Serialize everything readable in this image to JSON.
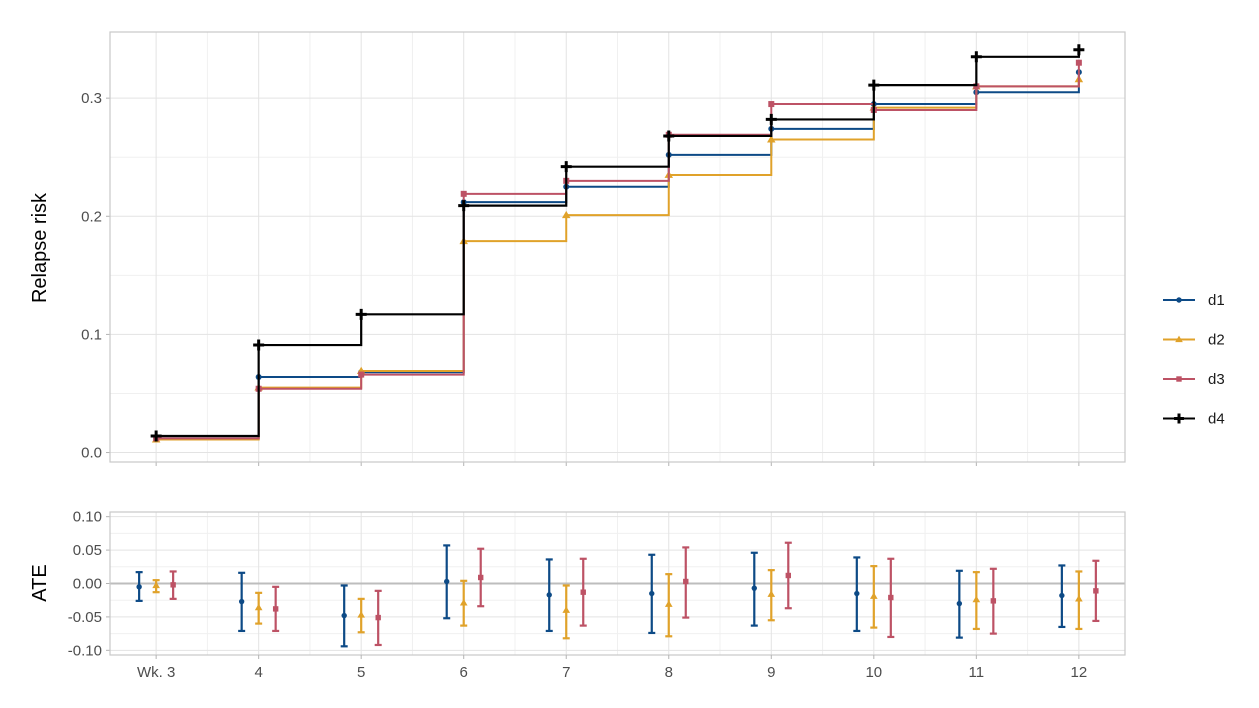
{
  "chart_data": [
    {
      "type": "line",
      "step": true,
      "ylabel": "Relapse risk",
      "xlabel": "",
      "ylim": [
        -0.008,
        0.356
      ],
      "yticks": [
        0.0,
        0.1,
        0.2,
        0.3
      ],
      "ytick_labels": [
        "0.0",
        "0.1",
        "0.2",
        "0.3"
      ],
      "grid": true,
      "x": [
        3,
        4,
        5,
        6,
        7,
        8,
        9,
        10,
        11,
        12
      ],
      "series": [
        {
          "name": "d1",
          "color": "#0d4a86",
          "marker": "circle",
          "values": [
            0.012,
            0.064,
            0.068,
            0.212,
            0.225,
            0.252,
            0.274,
            0.295,
            0.305,
            0.322
          ]
        },
        {
          "name": "d2",
          "color": "#e0a22a",
          "marker": "triangle",
          "values": [
            0.011,
            0.055,
            0.069,
            0.179,
            0.201,
            0.235,
            0.265,
            0.292,
            0.31,
            0.316
          ]
        },
        {
          "name": "d3",
          "color": "#bd5265",
          "marker": "square",
          "values": [
            0.012,
            0.054,
            0.066,
            0.219,
            0.23,
            0.269,
            0.295,
            0.29,
            0.31,
            0.33
          ]
        },
        {
          "name": "d4",
          "color": "#000000",
          "marker": "cross",
          "values": [
            0.014,
            0.091,
            0.117,
            0.209,
            0.242,
            0.268,
            0.282,
            0.311,
            0.335,
            0.341
          ]
        }
      ]
    },
    {
      "type": "errorbar",
      "ylabel": "ATE",
      "xlabel": "",
      "ylim": [
        -0.107,
        0.107
      ],
      "yticks": [
        -0.1,
        -0.05,
        0.0,
        0.05,
        0.1
      ],
      "ytick_labels": [
        "-0.10",
        "-0.05",
        "0.00",
        "0.05",
        "0.10"
      ],
      "grid": true,
      "reference_line": 0,
      "x": [
        3,
        4,
        5,
        6,
        7,
        8,
        9,
        10,
        11,
        12
      ],
      "xtick_labels": [
        "Wk. 3",
        "4",
        "5",
        "6",
        "7",
        "8",
        "9",
        "10",
        "11",
        "12"
      ],
      "series": [
        {
          "name": "d1",
          "color": "#0d4a86",
          "marker": "circle",
          "values": [
            -0.005,
            -0.027,
            -0.048,
            0.003,
            -0.017,
            -0.015,
            -0.007,
            -0.015,
            -0.03,
            -0.018
          ],
          "lower": [
            -0.026,
            -0.071,
            -0.094,
            -0.052,
            -0.071,
            -0.074,
            -0.063,
            -0.071,
            -0.081,
            -0.065
          ],
          "upper": [
            0.017,
            0.016,
            -0.003,
            0.057,
            0.036,
            0.043,
            0.046,
            0.039,
            0.019,
            0.027
          ]
        },
        {
          "name": "d2",
          "color": "#e0a22a",
          "marker": "triangle",
          "values": [
            -0.003,
            -0.036,
            -0.047,
            -0.029,
            -0.04,
            -0.031,
            -0.016,
            -0.019,
            -0.024,
            -0.023
          ],
          "lower": [
            -0.013,
            -0.06,
            -0.073,
            -0.063,
            -0.082,
            -0.079,
            -0.055,
            -0.066,
            -0.068,
            -0.068
          ],
          "upper": [
            0.005,
            -0.014,
            -0.023,
            0.004,
            -0.003,
            0.014,
            0.02,
            0.026,
            0.017,
            0.018
          ]
        },
        {
          "name": "d3",
          "color": "#bd5265",
          "marker": "square",
          "values": [
            -0.002,
            -0.038,
            -0.051,
            0.009,
            -0.013,
            0.003,
            0.012,
            -0.021,
            -0.026,
            -0.011
          ],
          "lower": [
            -0.023,
            -0.071,
            -0.092,
            -0.034,
            -0.063,
            -0.051,
            -0.037,
            -0.08,
            -0.075,
            -0.056
          ],
          "upper": [
            0.018,
            -0.005,
            -0.011,
            0.052,
            0.037,
            0.054,
            0.061,
            0.037,
            0.022,
            0.034
          ]
        }
      ]
    }
  ],
  "legend": {
    "placement": "right",
    "items": [
      {
        "label": "d1",
        "color": "#0d4a86",
        "marker": "circle"
      },
      {
        "label": "d2",
        "color": "#e0a22a",
        "marker": "triangle"
      },
      {
        "label": "d3",
        "color": "#bd5265",
        "marker": "square"
      },
      {
        "label": "d4",
        "color": "#000000",
        "marker": "cross"
      }
    ]
  }
}
